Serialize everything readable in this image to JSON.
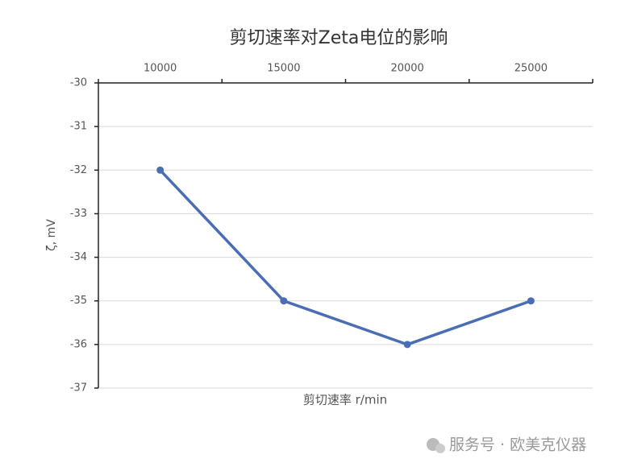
{
  "chart_data": {
    "type": "line",
    "title": "剪切速率对Zeta电位的影响",
    "x_label": "剪切速率 r/min",
    "y_label": "ζ, mV",
    "categories": [
      "10000",
      "15000",
      "20000",
      "25000"
    ],
    "series": [
      {
        "name": "Zeta",
        "color": "#4a6db3",
        "values": [
          -32,
          -35,
          -36,
          -35
        ]
      }
    ],
    "ylim": [
      -37,
      -30
    ],
    "yticks": [
      -30,
      -31,
      -32,
      -33,
      -34,
      -35,
      -36,
      -37
    ],
    "grid": true
  },
  "watermark": "服务号 · 欧美克仪器"
}
